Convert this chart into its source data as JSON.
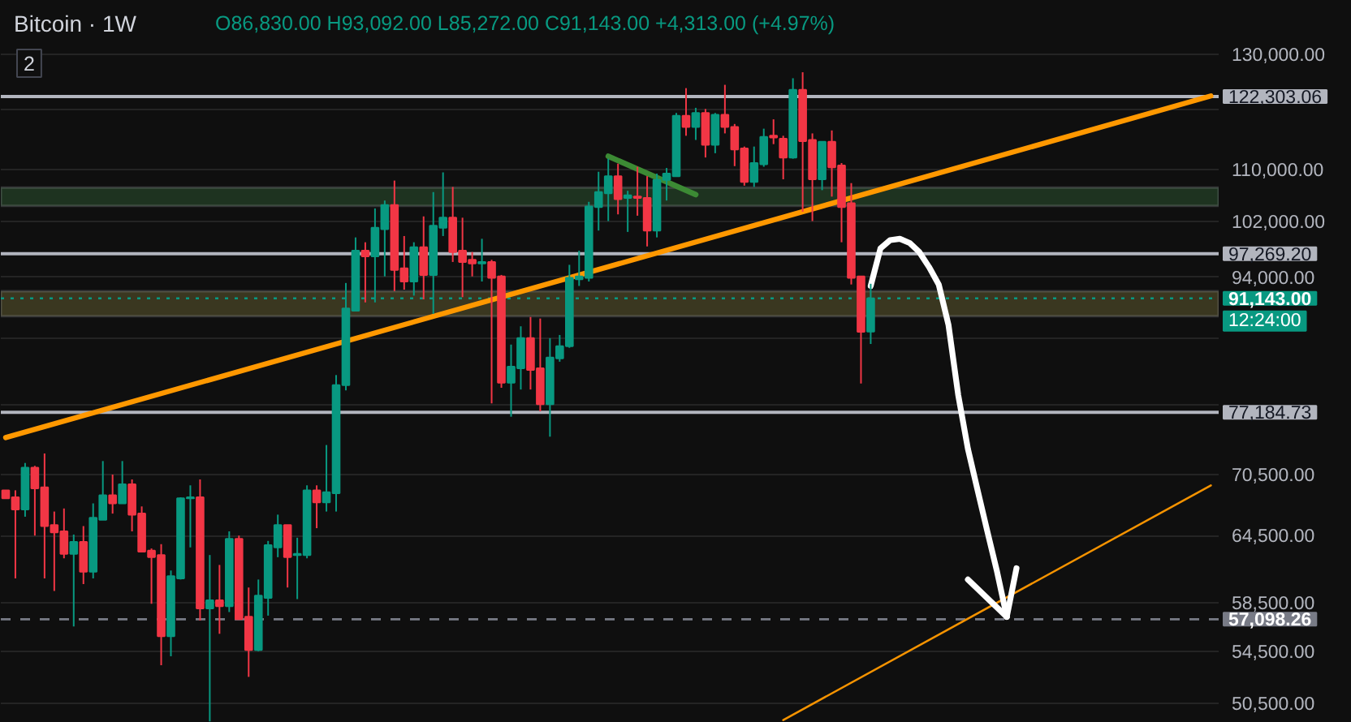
{
  "chart_data": {
    "type": "candlestick",
    "title": "Bitcoin · 1W",
    "subtitle": "O86,830.00 H93,092.00 L85,272.00 C91,143.00 +4,313.00 (+4.97%)",
    "annotations": [
      "2"
    ],
    "categories": [
      null,
      null,
      null,
      null,
      null,
      null,
      null,
      null,
      null,
      null,
      null,
      null,
      null,
      null,
      null,
      null,
      null,
      null,
      null,
      null,
      null,
      null,
      null,
      null,
      null,
      null,
      null,
      null,
      null,
      null,
      null,
      null,
      null,
      null,
      null,
      null,
      null,
      null,
      null,
      null,
      null,
      null,
      null,
      null,
      null,
      null,
      null,
      null,
      null,
      null,
      null,
      null,
      null,
      null,
      null,
      null,
      null,
      null,
      null,
      null,
      null,
      null,
      null,
      null,
      null,
      null,
      null,
      null,
      null,
      null,
      null,
      null,
      null,
      null,
      null,
      null,
      null,
      null,
      null,
      null,
      null,
      null,
      null,
      null,
      null,
      null,
      null,
      null,
      null,
      null,
      null,
      null,
      null,
      null,
      null,
      null,
      null,
      null,
      null,
      null,
      null,
      null,
      null,
      null,
      null,
      null,
      null,
      null,
      null,
      null,
      null,
      null,
      null,
      null,
      null,
      null,
      null,
      null,
      null,
      null,
      null,
      null,
      null,
      null,
      null,
      null,
      null,
      null,
      null,
      null,
      null,
      null,
      null,
      null,
      null,
      null,
      null,
      null,
      null
    ],
    "ohlc": [
      [
        68900,
        68900,
        68100,
        68100
      ],
      [
        68200,
        68900,
        60600,
        67000
      ],
      [
        67000,
        71700,
        66300,
        71200
      ],
      [
        71200,
        71400,
        64500,
        69100
      ],
      [
        69200,
        72700,
        60600,
        65400
      ],
      [
        65500,
        66800,
        59500,
        64800
      ],
      [
        64900,
        67100,
        62400,
        62800
      ],
      [
        62800,
        64600,
        56500,
        63900
      ],
      [
        63900,
        65400,
        60100,
        61200
      ],
      [
        61200,
        67600,
        60600,
        66200
      ],
      [
        66000,
        71900,
        66000,
        68400
      ],
      [
        68400,
        70500,
        66600,
        67600
      ],
      [
        67600,
        71900,
        67600,
        69500
      ],
      [
        69500,
        70000,
        64900,
        66500
      ],
      [
        66600,
        67300,
        63000,
        63000
      ],
      [
        63100,
        63300,
        58400,
        62500
      ],
      [
        62700,
        63700,
        53400,
        55700
      ],
      [
        55700,
        61300,
        54100,
        60800
      ],
      [
        60600,
        68200,
        60500,
        68100
      ],
      [
        68100,
        69400,
        63400,
        68200
      ],
      [
        68200,
        70000,
        57000,
        58000
      ],
      [
        58000,
        62700,
        49200,
        58700
      ],
      [
        58700,
        61800,
        55900,
        58200
      ],
      [
        58200,
        64900,
        57700,
        64200
      ],
      [
        64200,
        64500,
        57100,
        57100
      ],
      [
        57300,
        59800,
        52500,
        54600
      ],
      [
        54600,
        60500,
        54500,
        59100
      ],
      [
        58900,
        64000,
        57400,
        63600
      ],
      [
        63400,
        66500,
        62500,
        65500
      ],
      [
        65500,
        65500,
        59800,
        62500
      ],
      [
        62700,
        64300,
        58800,
        62800
      ],
      [
        62700,
        69400,
        62400,
        68900
      ],
      [
        68900,
        69400,
        65200,
        67700
      ],
      [
        67700,
        73600,
        66800,
        68700
      ],
      [
        68600,
        81500,
        66800,
        80300
      ],
      [
        80300,
        93200,
        79700,
        89800
      ],
      [
        89500,
        99600,
        89500,
        97700
      ],
      [
        97700,
        98900,
        90600,
        96900
      ],
      [
        96900,
        103900,
        90600,
        101000
      ],
      [
        100800,
        105100,
        94100,
        104400
      ],
      [
        104400,
        108200,
        92100,
        95000
      ],
      [
        95200,
        99800,
        92300,
        93400
      ],
      [
        93400,
        98900,
        91500,
        98200
      ],
      [
        98200,
        102700,
        91000,
        94300
      ],
      [
        94300,
        106400,
        89100,
        101300
      ],
      [
        101000,
        109500,
        99800,
        102500
      ],
      [
        102500,
        107200,
        96100,
        97500
      ],
      [
        97700,
        102500,
        91300,
        96100
      ],
      [
        96400,
        97500,
        94100,
        95900
      ],
      [
        95900,
        99400,
        93400,
        96100
      ],
      [
        96100,
        96400,
        78200,
        93900
      ],
      [
        94100,
        94300,
        80000,
        80600
      ],
      [
        80600,
        85200,
        76700,
        82500
      ],
      [
        82300,
        87500,
        79800,
        86000
      ],
      [
        86000,
        88700,
        79800,
        82100
      ],
      [
        82300,
        88500,
        77300,
        78100
      ],
      [
        78100,
        86000,
        74500,
        83600
      ],
      [
        83500,
        86400,
        83100,
        85000
      ],
      [
        85000,
        95700,
        84800,
        93900
      ],
      [
        93700,
        97700,
        92800,
        94100
      ],
      [
        93900,
        104900,
        93400,
        104200
      ],
      [
        104100,
        109600,
        100600,
        106400
      ],
      [
        106200,
        111700,
        102000,
        108900
      ],
      [
        108900,
        110900,
        103000,
        105300
      ],
      [
        105500,
        106600,
        100400,
        105900
      ],
      [
        105700,
        110400,
        102800,
        105500
      ],
      [
        105500,
        108900,
        98300,
        100600
      ],
      [
        100600,
        109300,
        99600,
        108300
      ],
      [
        108300,
        110200,
        105100,
        109300
      ],
      [
        108900,
        119400,
        108900,
        118900
      ],
      [
        118900,
        123800,
        115500,
        117000
      ],
      [
        117000,
        120300,
        114800,
        119400
      ],
      [
        119400,
        120100,
        111900,
        114000
      ],
      [
        114000,
        119400,
        112600,
        119100
      ],
      [
        119100,
        124400,
        115900,
        117000
      ],
      [
        117000,
        117500,
        110500,
        113200
      ],
      [
        113400,
        113700,
        107400,
        108000
      ],
      [
        108000,
        113700,
        107200,
        111000
      ],
      [
        110800,
        116700,
        110400,
        115300
      ],
      [
        115500,
        118300,
        114100,
        115200
      ],
      [
        115000,
        115500,
        108400,
        111900
      ],
      [
        111900,
        125600,
        111700,
        123500
      ],
      [
        123500,
        126700,
        103400,
        114600
      ],
      [
        114800,
        115900,
        102000,
        108400
      ],
      [
        108400,
        114500,
        106700,
        114500
      ],
      [
        114500,
        116400,
        105700,
        110300
      ],
      [
        110600,
        111000,
        98900,
        104100
      ],
      [
        104700,
        107800,
        93000,
        93900
      ],
      [
        94100,
        94100,
        80500,
        86800
      ],
      [
        86830,
        93092,
        85272,
        91143
      ],
      null,
      null,
      null,
      null,
      null,
      null,
      null,
      null,
      null,
      null,
      null,
      null,
      null,
      null,
      null,
      null,
      null,
      null,
      null,
      null,
      null,
      null,
      null,
      null,
      null,
      null,
      null,
      null,
      null,
      null,
      null,
      null,
      null,
      null,
      null,
      null,
      null,
      null,
      null,
      null,
      null,
      null,
      null,
      null,
      null,
      null,
      null,
      null,
      null
    ],
    "series": [
      {
        "type": "line",
        "color": "#ff9800",
        "values": [
          74400,
          null,
          null,
          null,
          null,
          null,
          null,
          null,
          null,
          null,
          null,
          null,
          null,
          null,
          null,
          null,
          null,
          null,
          null,
          null,
          null,
          null,
          null,
          null,
          null,
          null,
          null,
          null,
          null,
          null,
          null,
          null,
          null,
          null,
          null,
          null,
          null,
          null,
          null,
          null,
          null,
          null,
          null,
          null,
          null,
          null,
          null,
          null,
          null,
          null,
          null,
          null,
          null,
          null,
          null,
          null,
          null,
          null,
          null,
          null,
          null,
          null,
          null,
          null,
          null,
          null,
          null,
          null,
          null,
          null,
          null,
          null,
          null,
          null,
          null,
          null,
          null,
          null,
          null,
          null,
          null,
          null,
          null,
          null,
          null,
          null,
          null,
          null,
          null,
          null,
          null,
          null,
          null,
          null,
          null,
          null,
          null,
          null,
          null,
          null,
          null,
          null,
          null,
          null,
          null,
          null,
          null,
          null,
          null,
          null,
          null,
          null,
          null,
          null,
          null,
          null,
          null,
          null,
          null,
          null,
          null,
          null,
          null,
          null,
          122400,
          null,
          null,
          null,
          null,
          null,
          null,
          null,
          null,
          null,
          null,
          null,
          null,
          null,
          null
        ]
      },
      {
        "type": "line",
        "color": "#f59300",
        "values": [
          null,
          null,
          null,
          null,
          null,
          null,
          null,
          null,
          null,
          null,
          null,
          null,
          null,
          null,
          null,
          null,
          null,
          null,
          null,
          null,
          null,
          null,
          null,
          null,
          null,
          null,
          null,
          null,
          null,
          null,
          null,
          null,
          null,
          null,
          null,
          null,
          null,
          null,
          null,
          null,
          null,
          null,
          null,
          null,
          null,
          null,
          null,
          null,
          null,
          null,
          null,
          null,
          null,
          null,
          null,
          null,
          null,
          null,
          null,
          null,
          null,
          null,
          null,
          null,
          null,
          null,
          null,
          null,
          null,
          null,
          null,
          null,
          null,
          null,
          null,
          null,
          null,
          null,
          null,
          null,
          49300,
          null,
          null,
          null,
          null,
          null,
          null,
          null,
          null,
          null,
          null,
          null,
          null,
          null,
          null,
          null,
          null,
          null,
          null,
          null,
          null,
          null,
          null,
          null,
          null,
          null,
          null,
          null,
          null,
          null,
          null,
          null,
          null,
          null,
          null,
          null,
          null,
          null,
          null,
          null,
          null,
          null,
          null,
          null,
          69400,
          null,
          null,
          null,
          null,
          null,
          null,
          null,
          null,
          null,
          null,
          null,
          null,
          null,
          null
        ]
      },
      {
        "type": "line",
        "color": "#3c8a34",
        "values": [
          null,
          null,
          null,
          null,
          null,
          null,
          null,
          null,
          null,
          null,
          null,
          null,
          null,
          null,
          null,
          null,
          null,
          null,
          null,
          null,
          null,
          null,
          null,
          null,
          null,
          null,
          null,
          null,
          null,
          null,
          null,
          null,
          null,
          null,
          null,
          null,
          null,
          null,
          null,
          null,
          null,
          null,
          null,
          null,
          null,
          null,
          null,
          null,
          null,
          null,
          null,
          null,
          null,
          null,
          null,
          null,
          null,
          null,
          null,
          null,
          null,
          null,
          112100,
          null,
          null,
          null,
          null,
          null,
          null,
          null,
          null,
          106000,
          null,
          null,
          null,
          null,
          null,
          null,
          null,
          null,
          null,
          null,
          null,
          null,
          null,
          null,
          null,
          null,
          null,
          null,
          null,
          null,
          null,
          null,
          null,
          null,
          null,
          null,
          null,
          null,
          null,
          null,
          null,
          null,
          null,
          null,
          null,
          null,
          null,
          null,
          null,
          null,
          null,
          null,
          null,
          null,
          null,
          null,
          null,
          null,
          null,
          null,
          null,
          null,
          null,
          null,
          null,
          null,
          null,
          null,
          null,
          null,
          null,
          null,
          null,
          null,
          null,
          null,
          null
        ]
      },
      {
        "type": "line",
        "color": "#ffffff",
        "values": [
          null,
          null,
          null,
          null,
          null,
          null,
          null,
          null,
          null,
          null,
          null,
          null,
          null,
          null,
          null,
          null,
          null,
          null,
          null,
          null,
          null,
          null,
          null,
          null,
          null,
          null,
          null,
          null,
          null,
          null,
          null,
          null,
          null,
          null,
          null,
          null,
          null,
          null,
          null,
          null,
          null,
          null,
          null,
          null,
          null,
          null,
          null,
          null,
          null,
          null,
          null,
          null,
          null,
          null,
          null,
          null,
          null,
          null,
          null,
          null,
          null,
          null,
          null,
          null,
          null,
          null,
          null,
          null,
          null,
          null,
          null,
          null,
          null,
          null,
          null,
          null,
          null,
          null,
          null,
          null,
          null,
          null,
          null,
          null,
          null,
          null,
          null,
          null,
          null,
          92800,
          98000,
          99200,
          99400,
          98800,
          97500,
          95400,
          93000,
          87700,
          79200,
          73200,
          68900,
          64900,
          61200,
          57300,
          null,
          null,
          null,
          null,
          null,
          null,
          null,
          null,
          null,
          null,
          null,
          null,
          null,
          null,
          null,
          null,
          null,
          null,
          null,
          null,
          null,
          null,
          null,
          null,
          null,
          null,
          null,
          null,
          null,
          null,
          null,
          null,
          null,
          null,
          null
        ]
      },
      {
        "type": "line",
        "color": "#ffffff",
        "values": [
          null,
          null,
          null,
          null,
          null,
          null,
          null,
          null,
          null,
          null,
          null,
          null,
          null,
          null,
          null,
          null,
          null,
          null,
          null,
          null,
          null,
          null,
          null,
          null,
          null,
          null,
          null,
          null,
          null,
          null,
          null,
          null,
          null,
          null,
          null,
          null,
          null,
          null,
          null,
          null,
          null,
          null,
          null,
          null,
          null,
          null,
          null,
          null,
          null,
          null,
          null,
          null,
          null,
          null,
          null,
          null,
          null,
          null,
          null,
          null,
          null,
          null,
          null,
          null,
          null,
          null,
          null,
          null,
          null,
          null,
          null,
          null,
          null,
          null,
          null,
          null,
          null,
          null,
          null,
          null,
          null,
          null,
          null,
          null,
          null,
          null,
          null,
          null,
          null,
          null,
          null,
          null,
          null,
          null,
          null,
          null,
          null,
          null,
          null,
          60500,
          null,
          null,
          null,
          57300,
          null,
          null,
          null,
          null,
          null,
          null,
          null,
          null,
          null,
          null,
          null,
          null,
          null,
          null,
          null,
          null,
          null,
          null,
          null,
          null,
          null,
          null,
          null,
          null,
          null,
          null,
          null,
          null,
          null,
          null,
          null,
          null,
          null,
          null,
          null
        ]
      },
      {
        "type": "line",
        "color": "#ffffff",
        "values": [
          null,
          null,
          null,
          null,
          null,
          null,
          null,
          null,
          null,
          null,
          null,
          null,
          null,
          null,
          null,
          null,
          null,
          null,
          null,
          null,
          null,
          null,
          null,
          null,
          null,
          null,
          null,
          null,
          null,
          null,
          null,
          null,
          null,
          null,
          null,
          null,
          null,
          null,
          null,
          null,
          null,
          null,
          null,
          null,
          null,
          null,
          null,
          null,
          null,
          null,
          null,
          null,
          null,
          null,
          null,
          null,
          null,
          null,
          null,
          null,
          null,
          null,
          null,
          null,
          null,
          null,
          null,
          null,
          null,
          null,
          null,
          null,
          null,
          null,
          null,
          null,
          null,
          null,
          null,
          null,
          null,
          null,
          null,
          null,
          null,
          null,
          null,
          null,
          null,
          null,
          null,
          null,
          null,
          null,
          null,
          null,
          null,
          null,
          null,
          null,
          null,
          null,
          null,
          57300,
          61500,
          null,
          null,
          null,
          null,
          null,
          null,
          null,
          null,
          null,
          null,
          null,
          null,
          null,
          null,
          null,
          null,
          null,
          null,
          null,
          null,
          null,
          null,
          null,
          null,
          null,
          null,
          null,
          null,
          null,
          null,
          null,
          null,
          null,
          null
        ]
      }
    ],
    "ylim": [
      49100,
      140600
    ],
    "yticks": [
      {
        "value": 130000,
        "label": "130,000.00"
      },
      {
        "value": 120000,
        "label": null
      },
      {
        "value": 110000,
        "label": "110,000.00"
      },
      {
        "value": 102000,
        "label": "102,000.00"
      },
      {
        "value": 94000,
        "label": "94,000.00"
      },
      {
        "value": 86000,
        "label": null
      },
      {
        "value": 78000,
        "label": null
      },
      {
        "value": 70500,
        "label": "70,500.00"
      },
      {
        "value": 64500,
        "label": "64,500.00"
      },
      {
        "value": 58500,
        "label": "58,500.00"
      },
      {
        "value": 54500,
        "label": "54,500.00"
      },
      {
        "value": 50500,
        "label": "50,500.00"
      }
    ],
    "log": "y",
    "grid": "y",
    "tick_labels": "y",
    "ref_lines": [
      {
        "axis": "y",
        "value": 122303.06,
        "label": "122,303.06",
        "color": "#b2b5be"
      },
      {
        "axis": "y",
        "value": 97269.2,
        "label": "97,269.20",
        "color": "#b2b5be"
      },
      {
        "axis": "y",
        "value": 91143,
        "label": "91,143.00\n12:24:00",
        "color": "#089981",
        "line_style": "dotted"
      },
      {
        "axis": "y",
        "value": 77184.73,
        "label": "77,184.73",
        "color": "#b2b5be"
      },
      {
        "axis": "y",
        "value": 57098.26,
        "label": "57,098.26",
        "color": "#787b86",
        "line_style": "dashed"
      }
    ],
    "bands": [
      {
        "axis": "y",
        "from": 104300,
        "to": 107100,
        "color": "#1e3320"
      },
      {
        "axis": "y",
        "from": 88800,
        "to": 92100,
        "color": "#3a3720"
      }
    ]
  }
}
